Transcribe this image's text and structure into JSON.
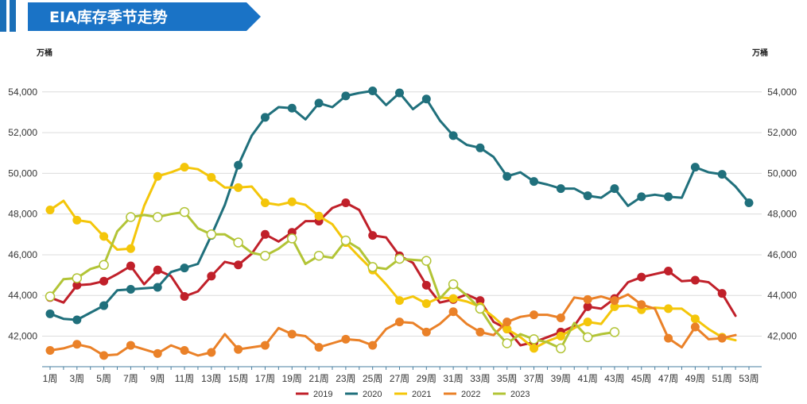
{
  "header": {
    "title": "EIA库存季节走势"
  },
  "chart_data": {
    "type": "line",
    "title": "EIA库存季节走势",
    "ylabel_left": "万桶",
    "ylabel_right": "万桶",
    "ylim": [
      40500,
      55200
    ],
    "yticks": [
      42000,
      44000,
      46000,
      48000,
      50000,
      52000,
      54000
    ],
    "ytick_labels": [
      "42,000",
      "44,000",
      "46,000",
      "48,000",
      "50,000",
      "52,000",
      "54,000"
    ],
    "x_tick_labels": [
      "1周",
      "3周",
      "5周",
      "7周",
      "9周",
      "11周",
      "13周",
      "15周",
      "17周",
      "19周",
      "21周",
      "23周",
      "25周",
      "27周",
      "29周",
      "31周",
      "33周",
      "35周",
      "37周",
      "39周",
      "41周",
      "43周",
      "45周",
      "47周",
      "49周",
      "51周",
      "53周"
    ],
    "grid": "horizontal",
    "legend_position": "bottom",
    "series": [
      {
        "name": "2019",
        "color": "#c0202a",
        "marker": "filled",
        "values": [
          43900,
          43650,
          44500,
          44550,
          44700,
          45050,
          45450,
          44550,
          45250,
          44950,
          43950,
          44200,
          44950,
          45650,
          45500,
          46050,
          47000,
          46650,
          47100,
          47650,
          47650,
          48300,
          48550,
          48200,
          46950,
          46850,
          45950,
          45600,
          44500,
          43650,
          43800,
          44050,
          43750,
          42700,
          42350,
          41550,
          41700,
          41950,
          42200,
          42500,
          43450,
          43350,
          43850,
          44650,
          44900,
          45050,
          45200,
          44700,
          44750,
          44650,
          44100,
          43000
        ]
      },
      {
        "name": "2020",
        "color": "#20707c",
        "marker": "filled",
        "values": [
          43100,
          42850,
          42800,
          43150,
          43500,
          44250,
          44300,
          44350,
          44400,
          45150,
          45350,
          45550,
          46950,
          48450,
          50400,
          51850,
          52750,
          53250,
          53200,
          52650,
          53450,
          53250,
          53800,
          53950,
          54050,
          53350,
          53950,
          53150,
          53650,
          52600,
          51850,
          51400,
          51250,
          50800,
          49850,
          50050,
          49600,
          49450,
          49250,
          49250,
          48900,
          48800,
          49250,
          48400,
          48850,
          48950,
          48850,
          48800,
          50300,
          50050,
          49950,
          49350,
          48550
        ]
      },
      {
        "name": "2021",
        "color": "#f4c60a",
        "marker": "filled",
        "values": [
          48200,
          48650,
          47700,
          47600,
          46900,
          46250,
          46300,
          48400,
          49850,
          50050,
          50300,
          50200,
          49800,
          49300,
          49300,
          49350,
          48550,
          48450,
          48600,
          48450,
          47900,
          47500,
          46600,
          45900,
          45250,
          44550,
          43750,
          43950,
          43600,
          43900,
          43850,
          43700,
          43450,
          42950,
          42350,
          41950,
          41400,
          41750,
          42000,
          42400,
          42700,
          42600,
          43450,
          43500,
          43300,
          43400,
          43350,
          43350,
          42850,
          42350,
          41950,
          41800
        ]
      },
      {
        "name": "2022",
        "color": "#ea8128",
        "marker": "filled",
        "values": [
          41300,
          41400,
          41600,
          41450,
          41050,
          41100,
          41550,
          41350,
          41150,
          41550,
          41300,
          41050,
          41200,
          42100,
          41350,
          41450,
          41550,
          42400,
          42100,
          42000,
          41450,
          41650,
          41850,
          41800,
          41550,
          42350,
          42700,
          42650,
          42200,
          42600,
          43200,
          42600,
          42200,
          42050,
          42700,
          42950,
          43050,
          43050,
          42900,
          43900,
          43800,
          43950,
          43750,
          44050,
          43550,
          43350,
          41900,
          41450,
          42450,
          41850,
          41900,
          42050
        ]
      },
      {
        "name": "2023",
        "color": "#b2c436",
        "marker": "hollow",
        "values": [
          43950,
          44800,
          44850,
          45300,
          45500,
          47150,
          47850,
          47950,
          47850,
          48000,
          48100,
          47300,
          47000,
          47000,
          46600,
          46100,
          45950,
          46300,
          46800,
          45550,
          45950,
          45850,
          46700,
          46300,
          45400,
          45300,
          45800,
          45750,
          45700,
          43850,
          44550,
          44000,
          43350,
          42350,
          41650,
          42100,
          41850,
          41700,
          41400,
          42650,
          41950,
          42100,
          42200
        ]
      }
    ]
  }
}
